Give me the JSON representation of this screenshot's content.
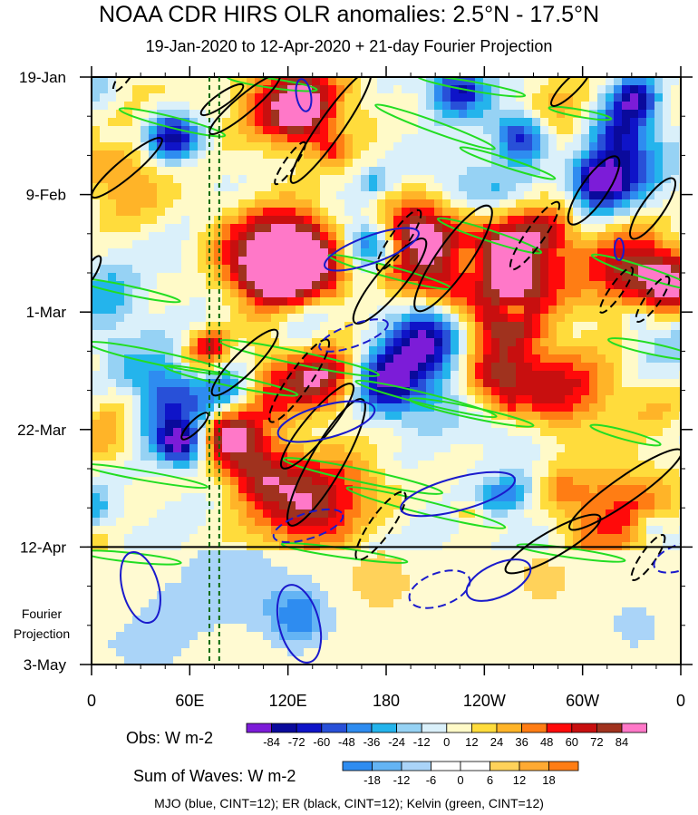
{
  "title": "NOAA CDR HIRS OLR anomalies: 2.5°N - 17.5°N",
  "subtitle": "19-Jan-2020 to 12-Apr-2020 + 21-day Fourier Projection",
  "fourier_label": [
    "Fourier",
    "Projection"
  ],
  "footer": "MJO (blue, CINT=12); ER (black, CINT=12); Kelvin (green, CINT=12)",
  "legend_obs": {
    "title": "Obs: W m-2",
    "labels": [
      "-84",
      "-72",
      "-60",
      "-48",
      "-36",
      "-24",
      "-12",
      "0",
      "12",
      "24",
      "36",
      "48",
      "60",
      "72",
      "84"
    ],
    "colors": [
      "#7c1cd8",
      "#0a0a9c",
      "#0f14c8",
      "#2850d8",
      "#2e8cf0",
      "#24b4ec",
      "#96d2f4",
      "#daf0fa",
      "#fffac8",
      "#ffdc3c",
      "#ffb428",
      "#ff7d14",
      "#ff0a0a",
      "#c80f0f",
      "#a0321e",
      "#ff78c8"
    ]
  },
  "legend_waves": {
    "title": "Sum of Waves: W m-2",
    "labels": [
      "-18",
      "-12",
      "-6",
      "0",
      "6",
      "12",
      "18"
    ],
    "colors": [
      "#2e8cf0",
      "#64b4f4",
      "#aad4f8",
      "#ffffff",
      "#ffffff",
      "#ffd25a",
      "#ffaa32",
      "#ff7d14"
    ]
  },
  "chart_data": {
    "type": "heatmap",
    "title": "NOAA CDR HIRS OLR anomalies: 2.5°N - 17.5°N",
    "subtitle": "19-Jan-2020 to 12-Apr-2020 + 21-day Fourier Projection",
    "x_axis": {
      "ticks": [
        "0",
        "60E",
        "120E",
        "180",
        "120W",
        "60W",
        "0"
      ],
      "tick_values_deg_east": [
        0,
        60,
        120,
        180,
        240,
        300,
        360
      ],
      "range": [
        0,
        360
      ]
    },
    "y_axis": {
      "ticks": [
        "19-Jan",
        "9-Feb",
        "1-Mar",
        "22-Mar",
        "12-Apr",
        "3-May"
      ],
      "range": [
        "2020-01-19",
        "2020-05-03"
      ],
      "direction": "time increasing downward"
    },
    "observed_end": "2020-04-12",
    "projection_end": "2020-05-03",
    "reference_lines_lon": [
      72,
      78
    ],
    "units": "W m-2",
    "shading_levels": [
      -84,
      -72,
      -60,
      -48,
      -36,
      -24,
      -12,
      0,
      12,
      24,
      36,
      48,
      60,
      72,
      84
    ],
    "contour_interval": 12,
    "contour_sets": [
      "MJO (blue)",
      "ER (black)",
      "Kelvin (green)"
    ]
  }
}
